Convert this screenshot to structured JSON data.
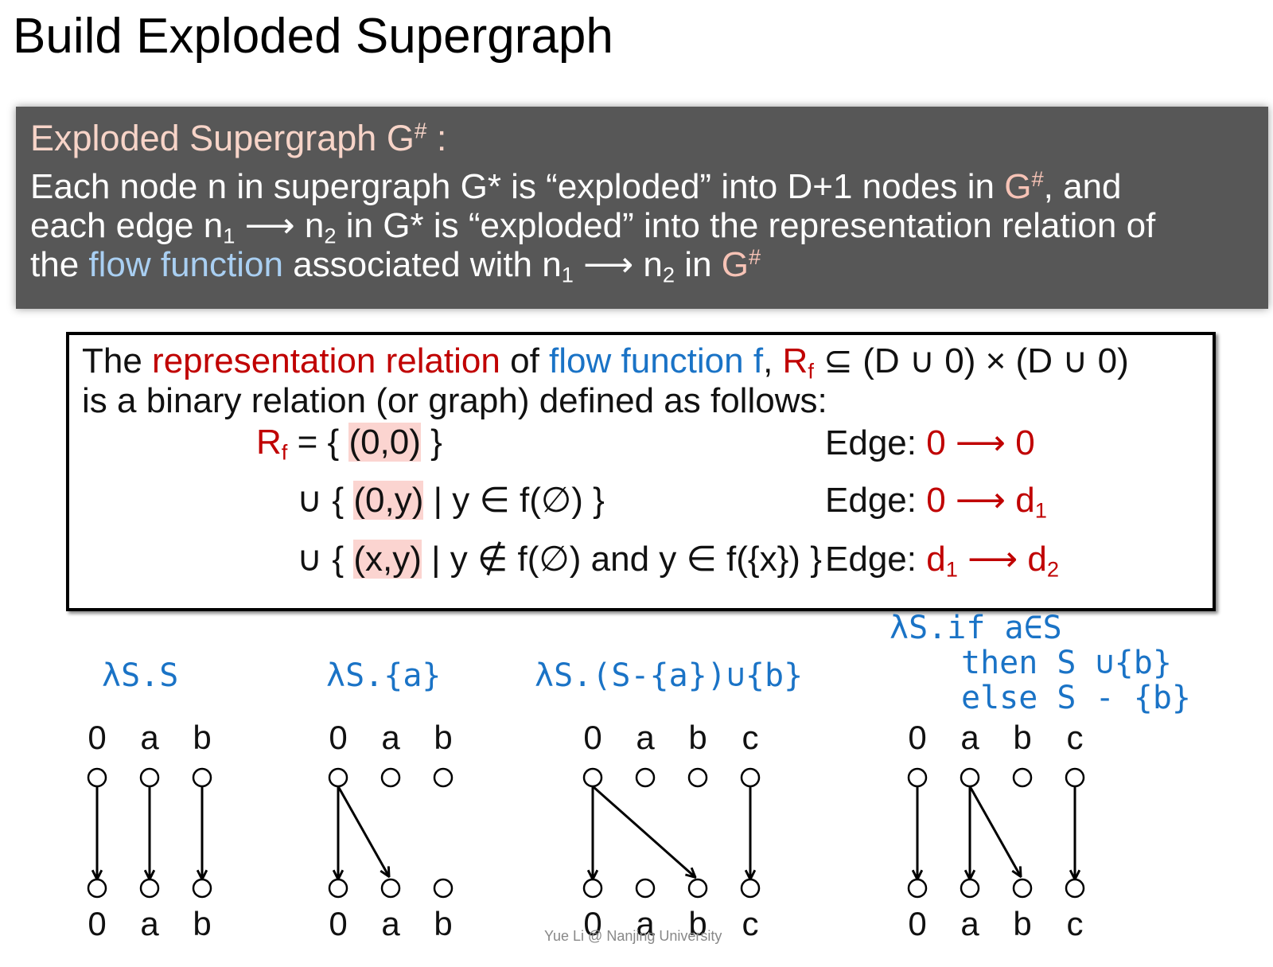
{
  "title": "Build Exploded Supergraph",
  "definition": {
    "heading": "Exploded Supergraph G# :",
    "line1_a": "Each node n in supergraph G* is “exploded” into D+1 nodes in ",
    "line1_g": "G#",
    "line1_b": ", and",
    "line2_a": "each edge n",
    "line2_s1": "1",
    "line2_b": " ⟶ n",
    "line2_s2": "2",
    "line2_c": " in G* is “exploded” into the representation relation of",
    "line3_a": "the ",
    "line3_flow": "flow function",
    "line3_b": " associated with n",
    "line3_s1": "1",
    "line3_c": " ⟶ n",
    "line3_s2": "2",
    "line3_d": " in ",
    "line3_g": "G#"
  },
  "relation": {
    "intro_a": "The ",
    "intro_rep": "representation relation",
    "intro_b": " of ",
    "intro_flow": "flow function f",
    "intro_c": ", ",
    "intro_R": "R",
    "intro_f": "f",
    "intro_d": " ⊆ (D ∪ 0) × (D ∪ 0)",
    "intro_e": "is a binary relation (or graph) defined as follows:",
    "r1_R": "R",
    "r1_f": "f",
    "r1_a": " = { ",
    "r1_pair": "(0,0)",
    "r1_b": " }",
    "r2_a": "∪ { ",
    "r2_pair": "(0,y)",
    "r2_b": " | y ∈ f(∅) }",
    "r3_a": "∪ { ",
    "r3_pair": "(x,y)",
    "r3_b": " | y ∉ f(∅) and y ∈ f({x}) }",
    "edge_label": "Edge: ",
    "e1": "0 ⟶ 0",
    "e2_a": "0 ⟶ d",
    "e2_s": "1",
    "e3_a": "d",
    "e3_s1": "1",
    "e3_b": " ⟶ d",
    "e3_s2": "2"
  },
  "functions": [
    {
      "lambda": [
        "λS.S"
      ]
    },
    {
      "lambda": [
        "λS.{a}"
      ]
    },
    {
      "lambda": [
        "λS.(S-{a})∪{b}"
      ]
    },
    {
      "lambda": [
        "λS.if a∈S",
        "then S ∪{b}",
        "else S - {b}"
      ]
    }
  ],
  "graphs": [
    {
      "nodes": [
        "0",
        "a",
        "b"
      ],
      "edges": [
        [
          "0",
          "0"
        ],
        [
          "a",
          "a"
        ],
        [
          "b",
          "b"
        ]
      ]
    },
    {
      "nodes": [
        "0",
        "a",
        "b"
      ],
      "edges": [
        [
          "0",
          "0"
        ],
        [
          "0",
          "a"
        ]
      ]
    },
    {
      "nodes": [
        "0",
        "a",
        "b",
        "c"
      ],
      "edges": [
        [
          "0",
          "0"
        ],
        [
          "0",
          "b"
        ],
        [
          "c",
          "c"
        ]
      ]
    },
    {
      "nodes": [
        "0",
        "a",
        "b",
        "c"
      ],
      "edges": [
        [
          "0",
          "0"
        ],
        [
          "a",
          "a"
        ],
        [
          "a",
          "b"
        ],
        [
          "c",
          "c"
        ]
      ]
    }
  ],
  "footer": "Yue Li @ Nanjing University"
}
